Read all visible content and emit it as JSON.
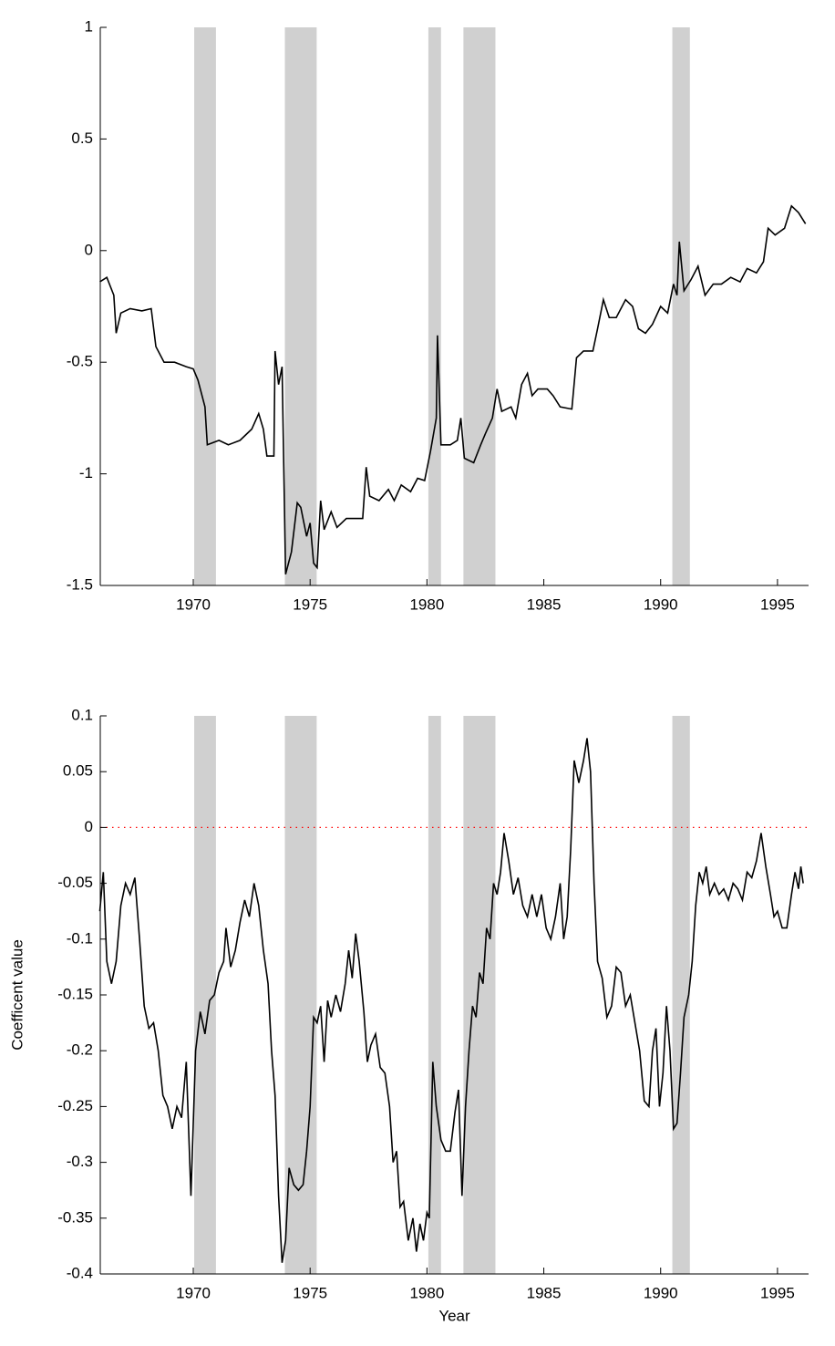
{
  "chart_data": [
    {
      "type": "line",
      "x": [
        1966.0,
        1966.3,
        1966.6,
        1966.7,
        1966.9,
        1967.3,
        1967.8,
        1968.2,
        1968.4,
        1968.75,
        1969.2,
        1969.7,
        1970.0,
        1970.2,
        1970.5,
        1970.6,
        1971.1,
        1971.5,
        1972.0,
        1972.5,
        1972.8,
        1973.0,
        1973.15,
        1973.45,
        1973.5,
        1973.65,
        1973.8,
        1973.95,
        1974.2,
        1974.45,
        1974.6,
        1974.85,
        1975.0,
        1975.15,
        1975.3,
        1975.45,
        1975.6,
        1975.9,
        1976.15,
        1976.55,
        1976.95,
        1977.25,
        1977.4,
        1977.55,
        1977.95,
        1978.35,
        1978.6,
        1978.9,
        1979.3,
        1979.6,
        1979.9,
        1980.15,
        1980.4,
        1980.45,
        1980.6,
        1981.0,
        1981.3,
        1981.45,
        1981.6,
        1982.0,
        1982.3,
        1982.5,
        1982.8,
        1983.0,
        1983.2,
        1983.6,
        1983.8,
        1984.05,
        1984.3,
        1984.5,
        1984.75,
        1985.15,
        1985.4,
        1985.7,
        1986.2,
        1986.4,
        1986.7,
        1987.1,
        1987.3,
        1987.55,
        1987.8,
        1988.1,
        1988.5,
        1988.8,
        1989.05,
        1989.35,
        1989.65,
        1990.0,
        1990.3,
        1990.55,
        1990.7,
        1990.8,
        1991.0,
        1991.3,
        1991.6,
        1991.9,
        1992.25,
        1992.6,
        1993.0,
        1993.4,
        1993.7,
        1994.1,
        1994.4,
        1994.6,
        1994.9,
        1995.3,
        1995.6,
        1995.9,
        1996.2
      ],
      "series": [
        {
          "color": "#000000",
          "values": [
            -0.14,
            -0.12,
            -0.2,
            -0.37,
            -0.28,
            -0.26,
            -0.27,
            -0.26,
            -0.43,
            -0.5,
            -0.5,
            -0.52,
            -0.53,
            -0.58,
            -0.7,
            -0.87,
            -0.85,
            -0.87,
            -0.85,
            -0.8,
            -0.73,
            -0.8,
            -0.92,
            -0.92,
            -0.45,
            -0.6,
            -0.52,
            -1.45,
            -1.35,
            -1.13,
            -1.15,
            -1.28,
            -1.22,
            -1.4,
            -1.42,
            -1.12,
            -1.25,
            -1.17,
            -1.24,
            -1.2,
            -1.2,
            -1.2,
            -0.97,
            -1.1,
            -1.12,
            -1.07,
            -1.12,
            -1.05,
            -1.08,
            -1.02,
            -1.03,
            -0.9,
            -0.75,
            -0.38,
            -0.87,
            -0.87,
            -0.85,
            -0.75,
            -0.93,
            -0.95,
            -0.87,
            -0.82,
            -0.75,
            -0.62,
            -0.72,
            -0.7,
            -0.75,
            -0.6,
            -0.55,
            -0.65,
            -0.62,
            -0.62,
            -0.65,
            -0.7,
            -0.71,
            -0.48,
            -0.45,
            -0.45,
            -0.35,
            -0.22,
            -0.3,
            -0.3,
            -0.22,
            -0.25,
            -0.35,
            -0.37,
            -0.33,
            -0.25,
            -0.28,
            -0.15,
            -0.2,
            0.04,
            -0.18,
            -0.13,
            -0.07,
            -0.2,
            -0.15,
            -0.15,
            -0.12,
            -0.14,
            -0.08,
            -0.1,
            -0.05,
            0.1,
            0.07,
            0.1,
            0.2,
            0.17,
            0.12
          ]
        }
      ],
      "xlim": [
        1966.02,
        1996.33
      ],
      "ylim": [
        -1.5,
        1
      ],
      "xticks": [
        1970,
        1975,
        1980,
        1985,
        1990,
        1995
      ],
      "yticks": [
        -1.5,
        -1,
        -0.5,
        0,
        0.5,
        1
      ],
      "shaded_regions": [
        [
          1970.04,
          1970.97
        ],
        [
          1973.92,
          1975.28
        ],
        [
          1980.06,
          1980.6
        ],
        [
          1981.56,
          1982.93
        ],
        [
          1990.5,
          1991.25
        ]
      ],
      "shade_color": "#d0d0d0"
    },
    {
      "type": "line",
      "x": [
        1966.0,
        1966.15,
        1966.3,
        1966.5,
        1966.7,
        1966.9,
        1967.1,
        1967.3,
        1967.5,
        1967.7,
        1967.9,
        1968.1,
        1968.3,
        1968.5,
        1968.7,
        1968.9,
        1969.1,
        1969.3,
        1969.5,
        1969.7,
        1969.9,
        1970.1,
        1970.3,
        1970.5,
        1970.7,
        1970.9,
        1971.1,
        1971.3,
        1971.4,
        1971.6,
        1971.8,
        1972.0,
        1972.2,
        1972.4,
        1972.6,
        1972.8,
        1973.0,
        1973.2,
        1973.35,
        1973.5,
        1973.65,
        1973.8,
        1973.95,
        1974.1,
        1974.3,
        1974.5,
        1974.7,
        1974.85,
        1975.0,
        1975.15,
        1975.3,
        1975.45,
        1975.6,
        1975.75,
        1975.9,
        1976.1,
        1976.3,
        1976.5,
        1976.65,
        1976.8,
        1976.95,
        1977.1,
        1977.3,
        1977.45,
        1977.6,
        1977.8,
        1978.0,
        1978.2,
        1978.4,
        1978.55,
        1978.7,
        1978.85,
        1979.0,
        1979.2,
        1979.4,
        1979.55,
        1979.7,
        1979.85,
        1980.0,
        1980.1,
        1980.25,
        1980.4,
        1980.6,
        1980.8,
        1981.0,
        1981.2,
        1981.35,
        1981.5,
        1981.65,
        1981.8,
        1981.95,
        1982.1,
        1982.25,
        1982.4,
        1982.55,
        1982.7,
        1982.85,
        1983.0,
        1983.15,
        1983.3,
        1983.5,
        1983.7,
        1983.9,
        1984.1,
        1984.3,
        1984.5,
        1984.7,
        1984.9,
        1985.1,
        1985.3,
        1985.5,
        1985.7,
        1985.85,
        1986.0,
        1986.15,
        1986.3,
        1986.5,
        1986.7,
        1986.85,
        1987.0,
        1987.15,
        1987.3,
        1987.5,
        1987.7,
        1987.9,
        1988.1,
        1988.3,
        1988.5,
        1988.7,
        1988.9,
        1989.1,
        1989.3,
        1989.5,
        1989.65,
        1989.8,
        1989.95,
        1990.1,
        1990.25,
        1990.4,
        1990.55,
        1990.7,
        1990.85,
        1991.0,
        1991.2,
        1991.35,
        1991.5,
        1991.65,
        1991.8,
        1991.95,
        1992.1,
        1992.3,
        1992.5,
        1992.7,
        1992.9,
        1993.1,
        1993.3,
        1993.5,
        1993.7,
        1993.9,
        1994.1,
        1994.3,
        1994.5,
        1994.7,
        1994.85,
        1995.0,
        1995.2,
        1995.4,
        1995.6,
        1995.75,
        1995.9,
        1996.0,
        1996.1
      ],
      "series": [
        {
          "color": "#000000",
          "values": [
            -0.075,
            -0.04,
            -0.12,
            -0.14,
            -0.12,
            -0.07,
            -0.05,
            -0.06,
            -0.045,
            -0.1,
            -0.16,
            -0.18,
            -0.175,
            -0.2,
            -0.24,
            -0.25,
            -0.27,
            -0.25,
            -0.26,
            -0.21,
            -0.33,
            -0.2,
            -0.165,
            -0.185,
            -0.155,
            -0.15,
            -0.13,
            -0.12,
            -0.09,
            -0.125,
            -0.11,
            -0.085,
            -0.065,
            -0.08,
            -0.05,
            -0.07,
            -0.11,
            -0.14,
            -0.2,
            -0.24,
            -0.33,
            -0.39,
            -0.37,
            -0.305,
            -0.32,
            -0.325,
            -0.32,
            -0.29,
            -0.25,
            -0.17,
            -0.175,
            -0.16,
            -0.21,
            -0.155,
            -0.17,
            -0.15,
            -0.165,
            -0.14,
            -0.11,
            -0.135,
            -0.095,
            -0.12,
            -0.165,
            -0.21,
            -0.195,
            -0.185,
            -0.215,
            -0.22,
            -0.25,
            -0.3,
            -0.29,
            -0.34,
            -0.335,
            -0.37,
            -0.35,
            -0.38,
            -0.355,
            -0.37,
            -0.345,
            -0.35,
            -0.21,
            -0.25,
            -0.28,
            -0.29,
            -0.29,
            -0.255,
            -0.235,
            -0.33,
            -0.25,
            -0.2,
            -0.16,
            -0.17,
            -0.13,
            -0.14,
            -0.09,
            -0.1,
            -0.05,
            -0.06,
            -0.04,
            -0.005,
            -0.03,
            -0.06,
            -0.045,
            -0.07,
            -0.08,
            -0.06,
            -0.08,
            -0.06,
            -0.09,
            -0.1,
            -0.08,
            -0.05,
            -0.1,
            -0.08,
            -0.02,
            0.06,
            0.04,
            0.06,
            0.08,
            0.05,
            -0.05,
            -0.12,
            -0.135,
            -0.17,
            -0.16,
            -0.125,
            -0.13,
            -0.16,
            -0.15,
            -0.175,
            -0.2,
            -0.245,
            -0.25,
            -0.2,
            -0.18,
            -0.25,
            -0.22,
            -0.16,
            -0.2,
            -0.27,
            -0.265,
            -0.22,
            -0.17,
            -0.15,
            -0.12,
            -0.07,
            -0.04,
            -0.05,
            -0.035,
            -0.06,
            -0.05,
            -0.06,
            -0.055,
            -0.065,
            -0.05,
            -0.055,
            -0.065,
            -0.04,
            -0.045,
            -0.03,
            -0.005,
            -0.035,
            -0.06,
            -0.08,
            -0.075,
            -0.09,
            -0.09,
            -0.06,
            -0.04,
            -0.055,
            -0.035,
            -0.05
          ]
        }
      ],
      "xlim": [
        1966.02,
        1996.33
      ],
      "ylim": [
        -0.4,
        0.1
      ],
      "xticks": [
        1970,
        1975,
        1980,
        1985,
        1990,
        1995
      ],
      "yticks": [
        -0.4,
        -0.35,
        -0.3,
        -0.25,
        -0.2,
        -0.15,
        -0.1,
        -0.05,
        0,
        0.05,
        0.1
      ],
      "shaded_regions": [
        [
          1970.04,
          1970.97
        ],
        [
          1973.92,
          1975.28
        ],
        [
          1980.06,
          1980.6
        ],
        [
          1981.56,
          1982.93
        ],
        [
          1990.5,
          1991.25
        ]
      ],
      "shade_color": "#d0d0d0",
      "hline": 0,
      "hline_color": "#ff0000",
      "xlabel": "Year",
      "ylabel": "Coefficent value"
    }
  ]
}
